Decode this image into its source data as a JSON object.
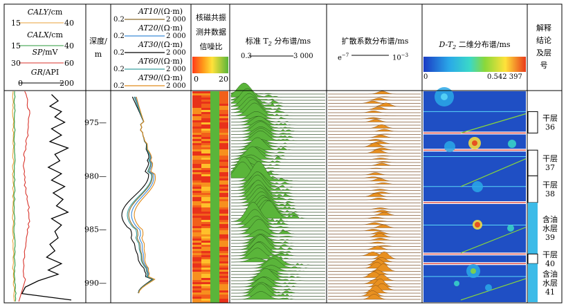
{
  "chart_data": {
    "type": "well-log",
    "depth_axis": {
      "label": "深度/m",
      "ticks": [
        975,
        980,
        985,
        990
      ],
      "range": [
        972.1,
        991.8
      ]
    },
    "track1": {
      "curves": [
        {
          "name": "CALY/cm",
          "range": [
            15,
            40
          ],
          "color": "#e8a23a"
        },
        {
          "name": "CALX/cm",
          "range": [
            15,
            40
          ],
          "color": "#2a9a3a"
        },
        {
          "name": "SP/mV",
          "range": [
            30,
            60
          ],
          "color": "#d8322a"
        },
        {
          "name": "GR/API",
          "range": [
            0,
            200
          ],
          "color": "#000000"
        }
      ],
      "gr_values": [
        {
          "d": 972.4,
          "v": 100
        },
        {
          "d": 973.0,
          "v": 120
        },
        {
          "d": 973.5,
          "v": 95
        },
        {
          "d": 974.0,
          "v": 130
        },
        {
          "d": 974.5,
          "v": 110
        },
        {
          "d": 975.0,
          "v": 140
        },
        {
          "d": 975.6,
          "v": 100
        },
        {
          "d": 976.2,
          "v": 130
        },
        {
          "d": 976.8,
          "v": 95
        },
        {
          "d": 977.4,
          "v": 150
        },
        {
          "d": 978.0,
          "v": 110
        },
        {
          "d": 978.6,
          "v": 125
        },
        {
          "d": 979.2,
          "v": 90
        },
        {
          "d": 979.8,
          "v": 130
        },
        {
          "d": 980.4,
          "v": 100
        },
        {
          "d": 981.0,
          "v": 140
        },
        {
          "d": 981.6,
          "v": 105
        },
        {
          "d": 982.2,
          "v": 135
        },
        {
          "d": 982.8,
          "v": 115
        },
        {
          "d": 983.4,
          "v": 150
        },
        {
          "d": 984.0,
          "v": 100
        },
        {
          "d": 984.6,
          "v": 130
        },
        {
          "d": 985.2,
          "v": 110
        },
        {
          "d": 985.8,
          "v": 120
        },
        {
          "d": 986.4,
          "v": 95
        },
        {
          "d": 987.0,
          "v": 110
        },
        {
          "d": 987.6,
          "v": 85
        },
        {
          "d": 988.2,
          "v": 130
        },
        {
          "d": 988.8,
          "v": 90
        },
        {
          "d": 989.2,
          "v": 120
        },
        {
          "d": 989.8,
          "v": 60
        },
        {
          "d": 990.4,
          "v": 20
        },
        {
          "d": 991.0,
          "v": 10
        },
        {
          "d": 991.6,
          "v": 160
        }
      ]
    },
    "track_resistivity": {
      "curves": [
        {
          "name": "AT10/(Ω·m)",
          "range": [
            "0.2",
            "2 000"
          ],
          "color": "#8a6a2a"
        },
        {
          "name": "AT20/(Ω·m)",
          "range": [
            "0.2",
            "2 000"
          ],
          "color": "#3a8ad8"
        },
        {
          "name": "AT30/(Ω·m)",
          "range": [
            "0.2",
            "2 000"
          ],
          "color": "#000000"
        },
        {
          "name": "AT60/(Ω·m)",
          "range": [
            "0.2",
            "2 000"
          ],
          "color": "#3aa0a0"
        },
        {
          "name": "AT90/(Ω·m)",
          "range": [
            "0.2",
            "2 000"
          ],
          "color": "#e08a1a"
        }
      ]
    },
    "track_snr": {
      "label": "核磁共振测井数据信噪比",
      "range": [
        0,
        20
      ]
    },
    "track_t2": {
      "label": "标准 T2 分布谱/ms",
      "range": [
        "0.3",
        "3 000"
      ],
      "color": "#5ab53a"
    },
    "track_d": {
      "label": "扩散系数分布谱/ms",
      "range": [
        "e−7",
        "10−3"
      ],
      "color": "#e89020"
    },
    "track_dt2": {
      "label": "D-T2 二维分布谱/ms",
      "range": [
        "0",
        "0.542 397"
      ]
    },
    "interpretation": [
      {
        "label": "干层 36",
        "top": 974.0,
        "bottom": 976.0,
        "type": "dry"
      },
      {
        "label": "干层 37",
        "top": 977.6,
        "bottom": 980.0,
        "type": "dry"
      },
      {
        "label": "干层 38",
        "top": 980.0,
        "bottom": 982.5,
        "type": "dry"
      },
      {
        "label": "含油水层 39",
        "top": 982.5,
        "bottom": 987.3,
        "type": "oil-water"
      },
      {
        "label": "干层 40",
        "top": 987.3,
        "bottom": 988.2,
        "type": "dry"
      },
      {
        "label": "含油水层 41",
        "top": 988.2,
        "bottom": 991.8,
        "type": "oil-water"
      }
    ]
  },
  "headers": {
    "caly": "CALY",
    "caly_unit": "/cm",
    "caly_min": "15",
    "caly_max": "40",
    "calx": "CALX",
    "calx_unit": "/cm",
    "calx_min": "15",
    "calx_max": "40",
    "sp": "SP",
    "sp_unit": "/mV",
    "sp_min": "30",
    "sp_max": "60",
    "gr": "GR",
    "gr_unit": "/API",
    "gr_min": "0",
    "gr_max": "200",
    "depth_l1": "深度/",
    "depth_l2": "m",
    "at10": "AT10",
    "at20": "AT20",
    "at30": "AT30",
    "at60": "AT60",
    "at90": "AT90",
    "res_unit": "/(Ω·m)",
    "res_min": "0.2",
    "res_max": "2 000",
    "snr_l1": "核磁共振",
    "snr_l2": "测井数据",
    "snr_l3": "信噪比",
    "snr_min": "0",
    "snr_max": "20",
    "t2_label": "标准 T",
    "t2_sub": "2",
    "t2_label2": " 分布谱/ms",
    "t2_min": "0.3",
    "t2_max": "3 000",
    "d_label": "扩散系数分布谱/ms",
    "d_min": "e",
    "d_min_sup": "−7",
    "d_max": "10",
    "d_max_sup": "−3",
    "dt2_label": "D-T",
    "dt2_sub": "2",
    "dt2_label2": " 二维分布谱/ms",
    "dt2_min": "0",
    "dt2_max": "0.542 397",
    "interp_l1": "解释",
    "interp_l2": "结论",
    "interp_l3": "及层",
    "interp_l4": "号"
  },
  "colors": {
    "caly": "#e8a23a",
    "calx": "#2a9a3a",
    "sp": "#d8322a",
    "gr": "#000000",
    "at10": "#8a6a2a",
    "at20": "#3a8ad8",
    "at30": "#000000",
    "at60": "#3aa0a0",
    "at90": "#e08a1a",
    "t2_fill": "#5ab53a",
    "d_fill": "#e89020",
    "dt2_bg": "#1f4fc4",
    "oil_water": "#3dbbe8"
  }
}
